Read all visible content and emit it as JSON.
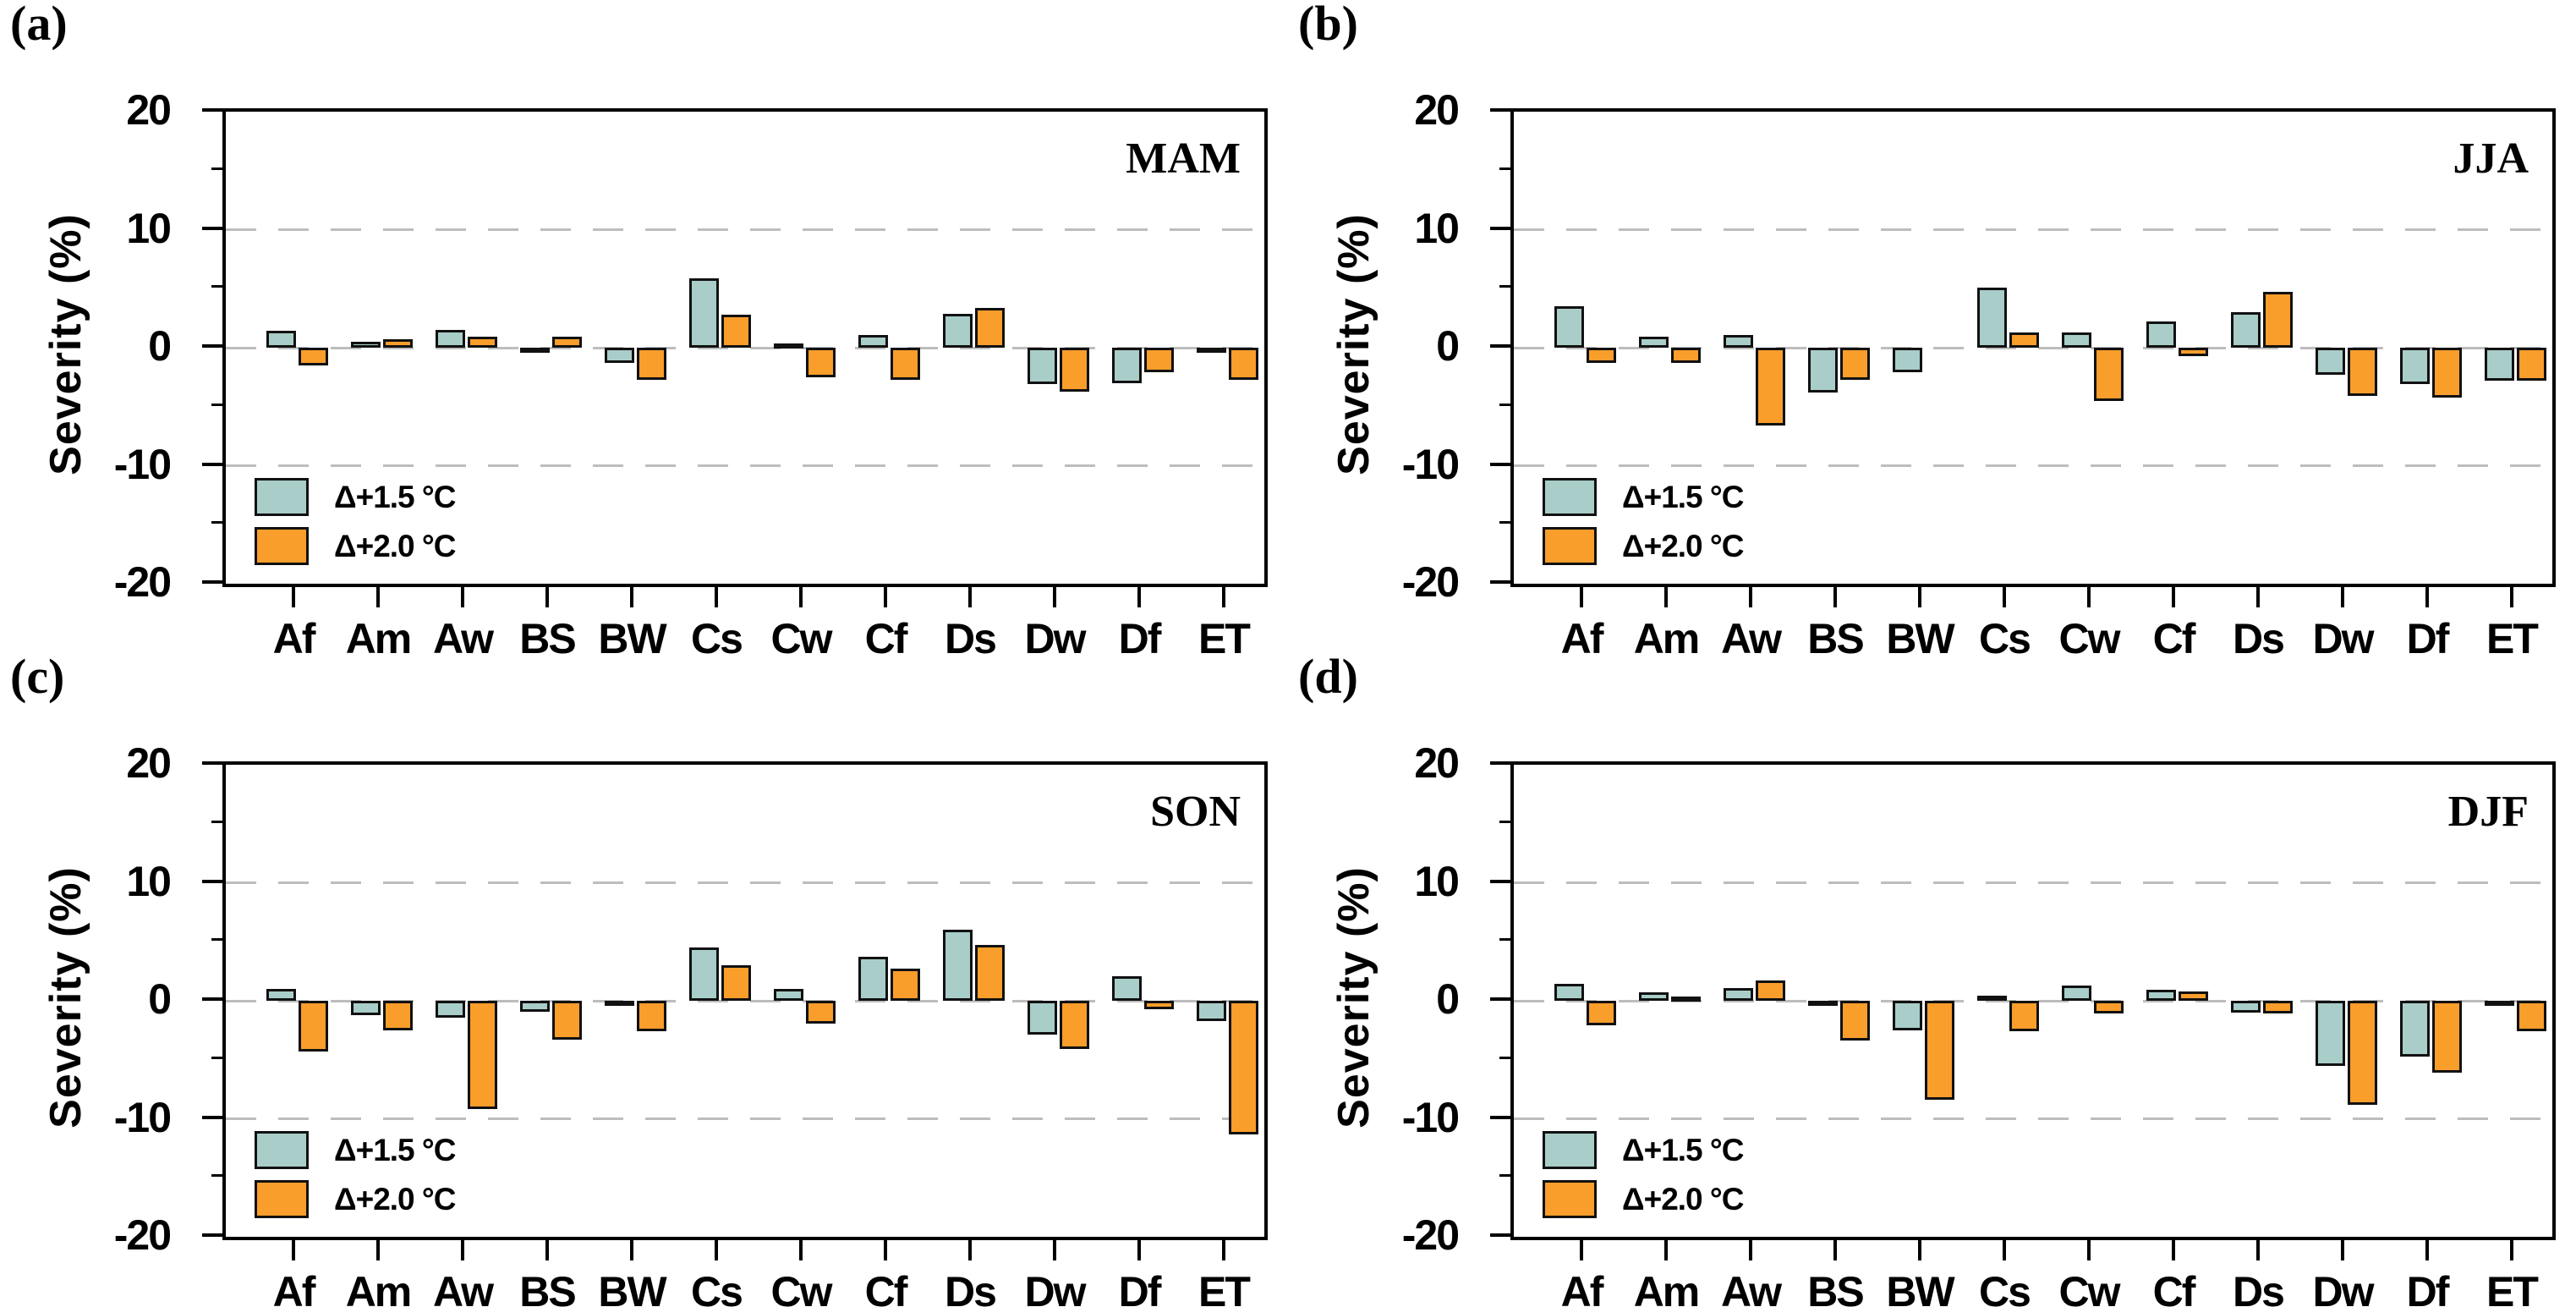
{
  "figure": {
    "ylabel": "Severity (%)",
    "ytick_labels": [
      "20",
      "10",
      "0",
      "-10",
      "-20"
    ],
    "legend": [
      {
        "label": "Δ+1.5 °C",
        "color": "#A9CDC9"
      },
      {
        "label": "Δ+2.0 °C",
        "color": "#F99D2B"
      }
    ],
    "colors": {
      "series_1_5": "#A9CDC9",
      "series_2_0": "#F99D2B",
      "bar_border": "#111111",
      "gridline": "#BDBDBD",
      "axis": "#000000"
    }
  },
  "chart_data": [
    {
      "type": "bar",
      "panel_label": "(a)",
      "title": "MAM",
      "categories": [
        "Af",
        "Am",
        "Aw",
        "BS",
        "BW",
        "Cs",
        "Cw",
        "Cf",
        "Ds",
        "Dw",
        "Df",
        "ET"
      ],
      "series": [
        {
          "name": "Δ+1.5 °C",
          "values": [
            1.4,
            0.5,
            1.5,
            -0.3,
            -1.3,
            5.9,
            0.2,
            1.1,
            2.9,
            -3.1,
            -3.0,
            -0.1
          ]
        },
        {
          "name": "Δ+2.0 °C",
          "values": [
            -1.5,
            0.7,
            0.9,
            0.9,
            -2.7,
            2.8,
            -2.5,
            -2.7,
            3.4,
            -3.7,
            -2.1,
            -2.7
          ]
        }
      ],
      "ylabel": "Severity (%)",
      "ylim": [
        -20,
        20
      ],
      "yticks": [
        20,
        10,
        0,
        -10,
        -20
      ],
      "minor_yticks": [
        15,
        5,
        -5,
        -15
      ],
      "gridlines": [
        10,
        0,
        -10
      ],
      "grid": "dashed horizontal",
      "legend_position": "lower left"
    },
    {
      "type": "bar",
      "panel_label": "(b)",
      "title": "JJA",
      "categories": [
        "Af",
        "Am",
        "Aw",
        "BS",
        "BW",
        "Cs",
        "Cw",
        "Cf",
        "Ds",
        "Dw",
        "Df",
        "ET"
      ],
      "series": [
        {
          "name": "Δ+1.5 °C",
          "values": [
            3.5,
            0.9,
            1.1,
            -3.8,
            -2.1,
            5.1,
            1.3,
            2.2,
            3.0,
            -2.3,
            -3.1,
            -2.8
          ]
        },
        {
          "name": "Δ+2.0 °C",
          "values": [
            -1.3,
            -1.3,
            -6.6,
            -2.7,
            0.0,
            1.3,
            -4.5,
            -0.7,
            4.7,
            -4.1,
            -4.2,
            -2.8
          ]
        }
      ],
      "ylabel": "Severity (%)",
      "ylim": [
        -20,
        20
      ],
      "yticks": [
        20,
        10,
        0,
        -10,
        -20
      ],
      "minor_yticks": [
        15,
        5,
        -5,
        -15
      ],
      "gridlines": [
        10,
        0,
        -10
      ],
      "grid": "dashed horizontal",
      "legend_position": "lower left"
    },
    {
      "type": "bar",
      "panel_label": "(c)",
      "title": "SON",
      "categories": [
        "Af",
        "Am",
        "Aw",
        "BS",
        "BW",
        "Cs",
        "Cw",
        "Cf",
        "Ds",
        "Dw",
        "Df",
        "ET"
      ],
      "series": [
        {
          "name": "Δ+1.5 °C",
          "values": [
            1.0,
            -1.2,
            -1.4,
            -0.9,
            -0.1,
            4.5,
            1.0,
            3.7,
            6.0,
            -2.9,
            2.1,
            -1.7
          ]
        },
        {
          "name": "Δ+2.0 °C",
          "values": [
            -4.3,
            -2.5,
            -9.2,
            -3.3,
            -2.6,
            3.0,
            -1.9,
            2.7,
            4.7,
            -4.1,
            -0.7,
            -11.3
          ]
        }
      ],
      "ylabel": "Severity (%)",
      "ylim": [
        -20,
        20
      ],
      "yticks": [
        20,
        10,
        0,
        -10,
        -20
      ],
      "minor_yticks": [
        15,
        5,
        -5,
        -15
      ],
      "gridlines": [
        10,
        0,
        -10
      ],
      "grid": "dashed horizontal",
      "legend_position": "lower left"
    },
    {
      "type": "bar",
      "panel_label": "(d)",
      "title": "DJF",
      "categories": [
        "Af",
        "Am",
        "Aw",
        "BS",
        "BW",
        "Cs",
        "Cw",
        "Cf",
        "Ds",
        "Dw",
        "Df",
        "ET"
      ],
      "series": [
        {
          "name": "Δ+1.5 °C",
          "values": [
            1.4,
            0.7,
            1.1,
            -0.4,
            -2.5,
            0.4,
            1.3,
            0.9,
            -1.0,
            -5.5,
            -4.7,
            -0.1
          ]
        },
        {
          "name": "Δ+2.0 °C",
          "values": [
            -2.1,
            0.3,
            1.7,
            -3.4,
            -8.4,
            -2.6,
            -1.1,
            0.8,
            -1.1,
            -8.8,
            -6.1,
            -2.6
          ]
        }
      ],
      "ylabel": "Severity (%)",
      "ylim": [
        -20,
        20
      ],
      "yticks": [
        20,
        10,
        0,
        -10,
        -20
      ],
      "minor_yticks": [
        15,
        5,
        -5,
        -15
      ],
      "gridlines": [
        10,
        0,
        -10
      ],
      "grid": "dashed horizontal",
      "legend_position": "lower left"
    }
  ]
}
